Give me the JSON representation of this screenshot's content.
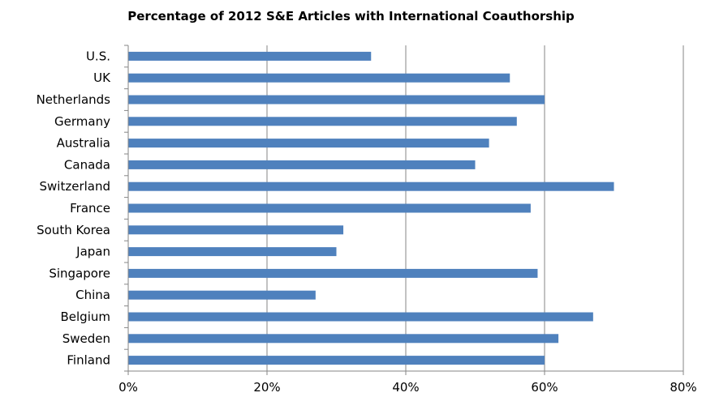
{
  "chart_data": {
    "type": "bar",
    "orientation": "horizontal",
    "title": "Percentage of 2012 S&E Articles  with International Coauthorship",
    "categories": [
      "U.S.",
      "UK",
      "Netherlands",
      "Germany",
      "Australia",
      "Canada",
      "Switzerland",
      "France",
      "South Korea",
      "Japan",
      "Singapore",
      "China",
      "Belgium",
      "Sweden",
      "Finland"
    ],
    "values": [
      35,
      55,
      60,
      56,
      52,
      50,
      70,
      58,
      31,
      30,
      59,
      27,
      67,
      62,
      60
    ],
    "value_unit": "%",
    "xlim": [
      0,
      80
    ],
    "x_ticks": [
      0,
      20,
      40,
      60,
      80
    ],
    "x_tick_labels": [
      "0%",
      "20%",
      "40%",
      "60%",
      "80%"
    ],
    "xlabel": "",
    "ylabel": "",
    "grid": true,
    "legend": "none",
    "bar_color": "#4F81BD",
    "grid_color": "#868686"
  }
}
